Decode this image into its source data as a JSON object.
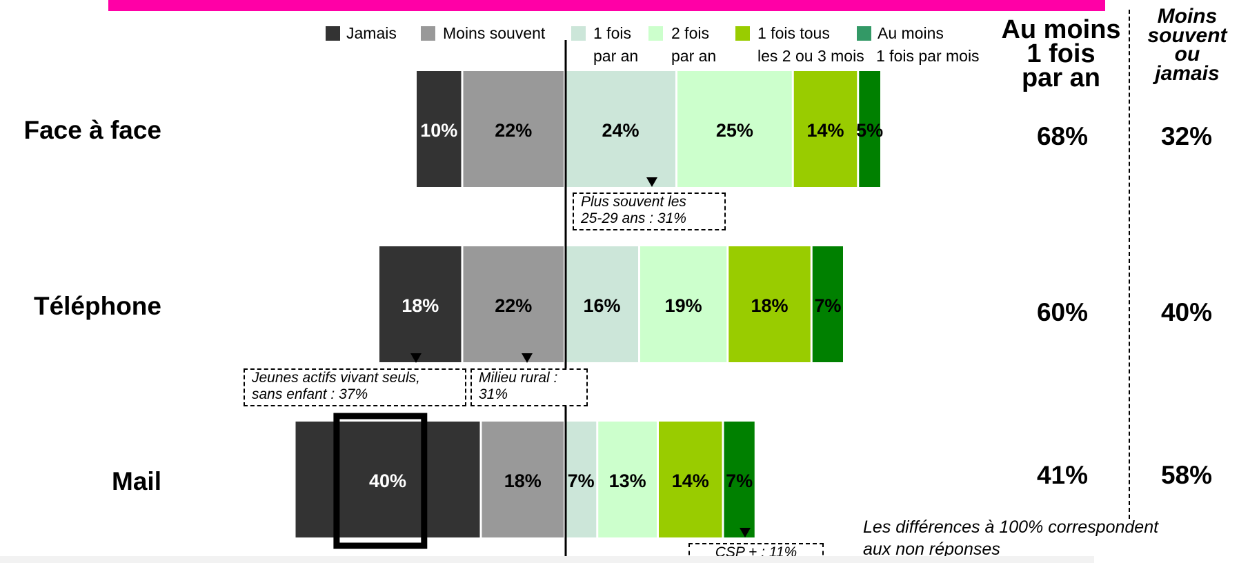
{
  "legend": [
    {
      "lines": [
        "Jamais"
      ],
      "color": "#333333"
    },
    {
      "lines": [
        "Moins souvent"
      ],
      "color": "#999999"
    },
    {
      "lines": [
        "1 fois",
        "par an"
      ],
      "color": "#cce6d9"
    },
    {
      "lines": [
        "2 fois",
        "par an"
      ],
      "color": "#ccffcc"
    },
    {
      "lines": [
        "1 fois tous",
        "les 2 ou 3 mois"
      ],
      "color": "#99cc00"
    },
    {
      "lines": [
        "Au moins",
        "1 fois par mois"
      ],
      "color": "#339966"
    }
  ],
  "column_headers": {
    "left": [
      "Au moins",
      "1 fois",
      "par an"
    ],
    "right": [
      "Moins",
      "souvent",
      "ou",
      "jamais"
    ]
  },
  "chart_data": {
    "type": "bar",
    "orientation": "horizontal-diverging",
    "categories": [
      "Face à face",
      "Téléphone",
      "Mail"
    ],
    "series": [
      {
        "name": "Jamais",
        "color": "#333333",
        "values": [
          10,
          18,
          40
        ]
      },
      {
        "name": "Moins souvent",
        "color": "#999999",
        "values": [
          22,
          22,
          18
        ]
      },
      {
        "name": "1 fois par an",
        "color": "#cce6d9",
        "values": [
          24,
          16,
          7
        ]
      },
      {
        "name": "2 fois par an",
        "color": "#ccffcc",
        "values": [
          25,
          19,
          13
        ]
      },
      {
        "name": "1 fois tous les 2 ou 3 mois",
        "color": "#99cc00",
        "values": [
          14,
          18,
          14
        ]
      },
      {
        "name": "Au moins 1 fois par mois",
        "color": "#008000",
        "values": [
          5,
          7,
          7
        ]
      }
    ],
    "summary": {
      "at_least_once_a_year": [
        "68%",
        "60%",
        "41%"
      ],
      "less_often_or_never": [
        "32%",
        "40%",
        "58%"
      ]
    },
    "highlight": {
      "category": "Mail",
      "series": "Jamais"
    }
  },
  "annotations": [
    {
      "lines": [
        "Plus souvent les",
        "25-29 ans : 31%"
      ]
    },
    {
      "lines": [
        "Jeunes actifs vivant seuls,",
        "sans enfant : 37%"
      ]
    },
    {
      "lines": [
        "Milieu rural :",
        "31%"
      ]
    },
    {
      "lines": [
        "CSP + : 11%"
      ]
    }
  ],
  "footnote": [
    "Les différences à 100% correspondent",
    "aux non réponses"
  ]
}
